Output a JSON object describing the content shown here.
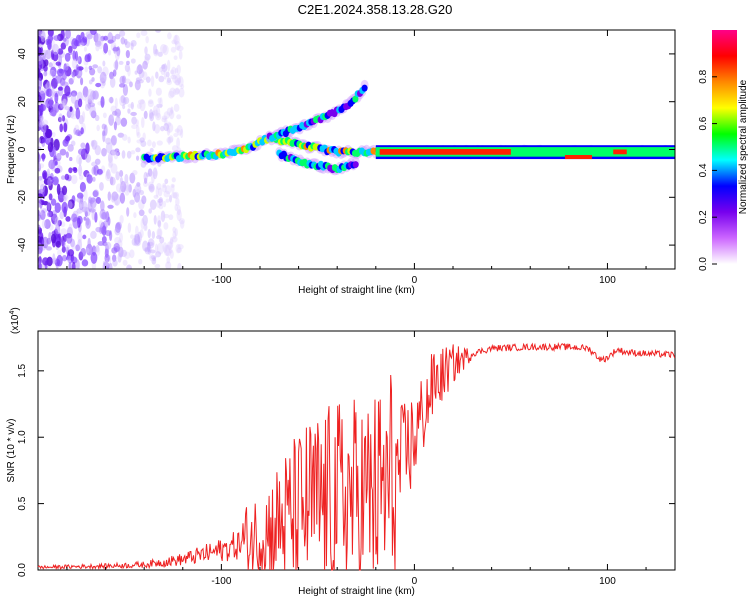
{
  "title": "C2E1.2024.358.13.28.G20",
  "chart_data": [
    {
      "type": "heatmap",
      "name": "spectrogram",
      "xlabel": "Height of straight line (km)",
      "ylabel": "Frequency (Hz)",
      "xlim": [
        -195,
        135
      ],
      "ylim": [
        -50,
        50
      ],
      "xticks": [
        -100,
        0,
        100
      ],
      "yticks": [
        -40,
        -20,
        0,
        20,
        40
      ],
      "colorbar": {
        "label": "Normalized spectral amplitude",
        "range": [
          0,
          1
        ],
        "ticks": [
          "0.0",
          "0.2",
          "0.4",
          "0.6",
          "0.8"
        ],
        "colors": [
          "#ffffff",
          "#cc66ff",
          "#7700ee",
          "#0000ff",
          "#00ffff",
          "#00ff00",
          "#ffff00",
          "#ff8800",
          "#ff0000",
          "#ff0088"
        ]
      },
      "features": [
        {
          "name": "main trace",
          "x": [
            -140,
            -120,
            -100,
            -85,
            -75,
            -60,
            -40,
            -20,
            0,
            50,
            100,
            135
          ],
          "y": [
            -4,
            -3,
            -2,
            1,
            5,
            2,
            -1,
            -1,
            -1,
            -1,
            -1,
            -1
          ]
        },
        {
          "name": "upper branch",
          "x": [
            -75,
            -60,
            -45,
            -32,
            -25
          ],
          "y": [
            5,
            9,
            14,
            20,
            27
          ]
        },
        {
          "name": "lower branch",
          "x": [
            -70,
            -55,
            -40,
            -30
          ],
          "y": [
            -2,
            -6,
            -8,
            -6
          ]
        }
      ]
    },
    {
      "type": "line",
      "name": "snr",
      "xlabel": "Height of straight line (km)",
      "ylabel": "SNR (10 * v/v)",
      "scale_label": "(x10",
      "scale_exp": "4",
      "xlim": [
        -195,
        135
      ],
      "ylim": [
        0,
        1.8
      ],
      "xticks": [
        -100,
        0,
        100
      ],
      "yticks": [
        "0.0",
        "0.5",
        "1.0",
        "1.5"
      ],
      "color": "#ee2222",
      "profile": {
        "x": [
          -195,
          -160,
          -140,
          -120,
          -100,
          -85,
          -75,
          -65,
          -55,
          -45,
          -35,
          -25,
          -15,
          -10,
          -5,
          0,
          5,
          10,
          20,
          30,
          40,
          60,
          80,
          90,
          97,
          100,
          105,
          110,
          120,
          135
        ],
        "y": [
          0.02,
          0.03,
          0.04,
          0.08,
          0.15,
          0.22,
          0.3,
          0.4,
          0.48,
          0.52,
          0.55,
          0.55,
          0.6,
          0.7,
          0.85,
          1.0,
          1.2,
          1.4,
          1.55,
          1.63,
          1.67,
          1.68,
          1.68,
          1.67,
          1.58,
          1.6,
          1.66,
          1.64,
          1.63,
          1.62
        ]
      }
    }
  ]
}
